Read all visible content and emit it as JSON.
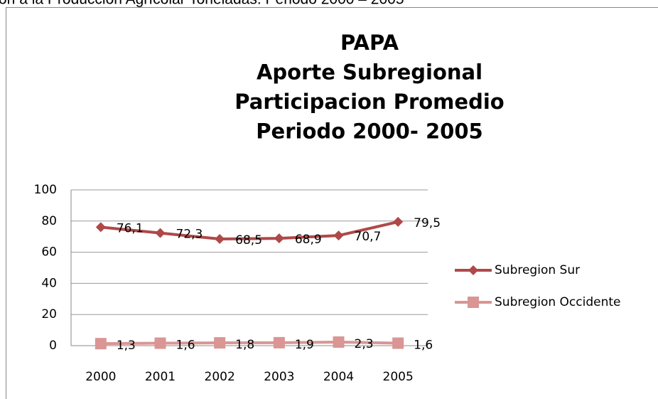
{
  "header": "ón a la Producción Agrícolar  Toneladas. Periodo 2000 – 2005",
  "chart_data": {
    "type": "line",
    "title": [
      "PAPA",
      "Aporte Subregional",
      "Participacion Promedio",
      "Periodo 2000- 2005"
    ],
    "categories": [
      "2000",
      "2001",
      "2002",
      "2003",
      "2004",
      "2005"
    ],
    "series": [
      {
        "name": "Subregion Sur",
        "color": "#b04848",
        "marker": "diamond",
        "values": [
          76.1,
          72.3,
          68.5,
          68.9,
          70.7,
          79.5
        ],
        "value_labels": [
          "76,1",
          "72,3",
          "68,5",
          "68,9",
          "70,7",
          "79,5"
        ]
      },
      {
        "name": "Subregion Occidente",
        "color": "#d99694",
        "marker": "square",
        "values": [
          1.3,
          1.6,
          1.8,
          1.9,
          2.3,
          1.6
        ],
        "value_labels": [
          "1,3",
          "1,6",
          "1,8",
          "1,9",
          "2,3",
          "1,6"
        ]
      }
    ],
    "ylim": [
      0,
      100
    ],
    "yticks": [
      0,
      20,
      40,
      60,
      80,
      100
    ],
    "grid": true,
    "legend": "right"
  }
}
